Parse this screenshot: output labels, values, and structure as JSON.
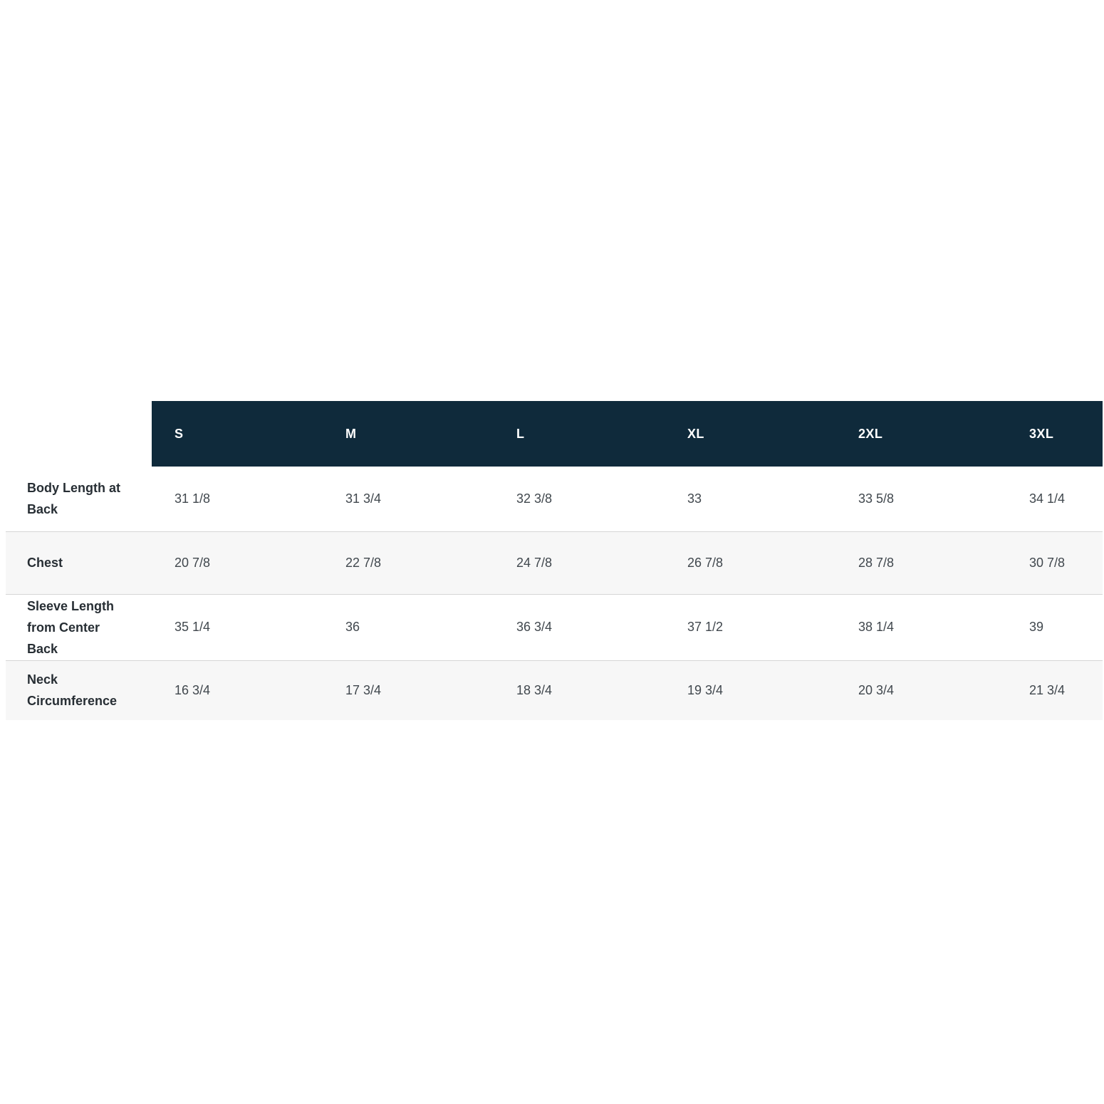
{
  "size_chart": {
    "columns": [
      "S",
      "M",
      "L",
      "XL",
      "2XL",
      "3XL"
    ],
    "rows": [
      {
        "label": "Body Length at Back",
        "values": [
          "31 1/8",
          "31 3/4",
          "32 3/8",
          "33",
          "33 5/8",
          "34 1/4"
        ]
      },
      {
        "label": "Chest",
        "values": [
          "20 7/8",
          "22 7/8",
          "24 7/8",
          "26 7/8",
          "28 7/8",
          "30 7/8"
        ]
      },
      {
        "label": "Sleeve Length from Center Back",
        "values": [
          "35 1/4",
          "36",
          "36 3/4",
          "37 1/2",
          "38 1/4",
          "39"
        ]
      },
      {
        "label": "Neck Circumference",
        "values": [
          "16 3/4",
          "17 3/4",
          "18 3/4",
          "19 3/4",
          "20 3/4",
          "21 3/4"
        ]
      }
    ],
    "colors": {
      "header_bg": "#0f2a3b",
      "header_text": "#ffffff",
      "alt_row_bg": "#f7f7f7",
      "divider": "#d6d6d6",
      "label_text": "#272e34",
      "value_text": "#40474d"
    }
  }
}
